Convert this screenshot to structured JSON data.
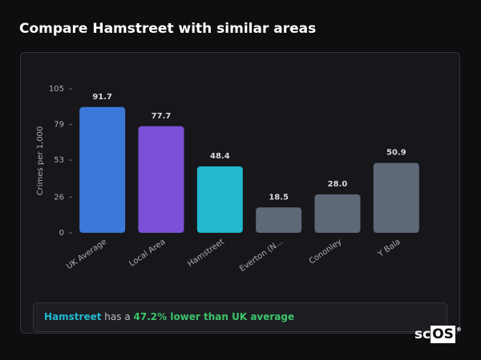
{
  "header": {
    "title": "Compare Hamstreet with similar areas"
  },
  "chart_data": {
    "type": "bar",
    "y_label": "Crimes per 1,000",
    "categories": [
      "UK Average",
      "Local Area",
      "Hamstreet",
      "Everton (N...",
      "Cononley",
      "Y Bala"
    ],
    "values": [
      91.7,
      77.7,
      48.4,
      18.5,
      28.0,
      50.9
    ],
    "value_labels": [
      "91.7",
      "77.7",
      "48.4",
      "18.5",
      "28.0",
      "50.9"
    ],
    "colors": [
      "#3b79d9",
      "#7b50d6",
      "#22b9cf",
      "#5d6878",
      "#5d6878",
      "#5d6878"
    ],
    "ylim": [
      0,
      105
    ],
    "yticks": [
      0,
      26,
      53,
      79,
      105
    ],
    "grid": false
  },
  "summary": {
    "area": "Hamstreet",
    "text": "has a",
    "highlight": "47.2% lower than UK average"
  },
  "logo": {
    "prefix": "sc",
    "boxed": "OS",
    "mark": "®"
  }
}
